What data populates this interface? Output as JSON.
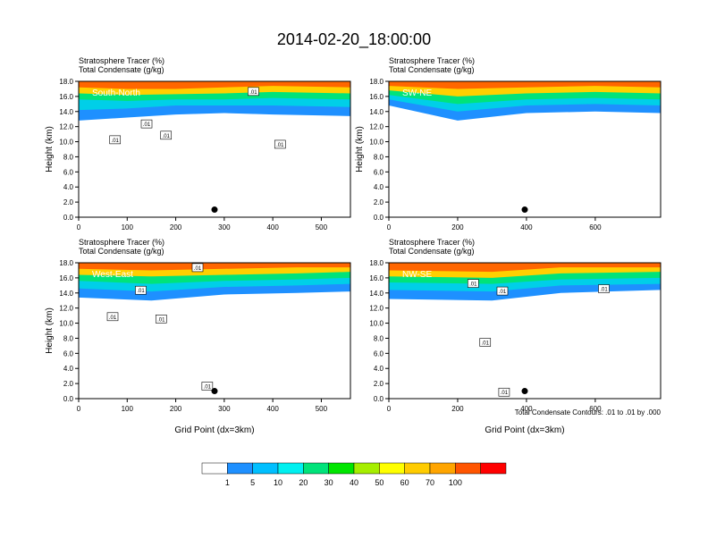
{
  "figure": {
    "title": "2014-02-20_18:00:00",
    "footnote": "Total Condensate Contours: .01 to .01 by .000"
  },
  "chart_data": [
    {
      "type": "heatmap",
      "panel_label": "South-North",
      "header_lines": [
        "Stratosphere Tracer   (%)",
        "Total Condensate   (g/kg)"
      ],
      "ylabel": "Height (km)",
      "xlabel": "",
      "xlim": [
        0,
        560
      ],
      "ylim": [
        0,
        18
      ],
      "x_ticks": [
        0,
        100,
        200,
        300,
        400,
        500
      ],
      "y_ticks": [
        "0.0",
        "2.0",
        "4.0",
        "6.0",
        "8.0",
        "10.0",
        "12.0",
        "14.0",
        "16.0",
        "18.0"
      ],
      "marker": {
        "x": 280,
        "y": 1.0
      },
      "contour_labels": [
        {
          "text": ".01",
          "x": 75,
          "y": 10.2
        },
        {
          "text": ".01",
          "x": 140,
          "y": 12.3
        },
        {
          "text": ".01",
          "x": 180,
          "y": 10.8
        },
        {
          "text": ".01",
          "x": 415,
          "y": 9.6
        },
        {
          "text": ".01",
          "x": 360,
          "y": 16.6
        }
      ],
      "tracer_top_levels": [
        {
          "x": 0,
          "z": [
            12.8,
            14.2,
            15.6,
            16.4,
            17.2
          ]
        },
        {
          "x": 100,
          "z": [
            13.2,
            14.4,
            15.4,
            16.2,
            17.0
          ]
        },
        {
          "x": 200,
          "z": [
            13.6,
            14.8,
            15.6,
            16.3,
            17.0
          ]
        },
        {
          "x": 300,
          "z": [
            13.8,
            14.8,
            15.6,
            16.4,
            17.2
          ]
        },
        {
          "x": 400,
          "z": [
            13.6,
            14.8,
            15.8,
            16.6,
            17.4
          ]
        },
        {
          "x": 560,
          "z": [
            13.4,
            14.6,
            15.6,
            16.4,
            17.2
          ]
        }
      ]
    },
    {
      "type": "heatmap",
      "panel_label": "SW-NE",
      "header_lines": [
        "Stratosphere Tracer   (%)",
        "Total Condensate   (g/kg)"
      ],
      "ylabel": "Height (km)",
      "xlabel": "",
      "xlim": [
        0,
        790
      ],
      "ylim": [
        0,
        18
      ],
      "x_ticks": [
        0,
        200,
        400,
        600
      ],
      "y_ticks": [
        "0.0",
        "2.0",
        "4.0",
        "6.0",
        "8.0",
        "10.0",
        "12.0",
        "14.0",
        "16.0",
        "18.0"
      ],
      "marker": {
        "x": 395,
        "y": 1.0
      },
      "contour_labels": [],
      "tracer_top_levels": [
        {
          "x": 0,
          "z": [
            14.8,
            15.6,
            16.2,
            16.8,
            17.4
          ]
        },
        {
          "x": 200,
          "z": [
            12.8,
            14.0,
            15.0,
            16.0,
            17.0
          ]
        },
        {
          "x": 400,
          "z": [
            13.8,
            14.8,
            15.6,
            16.4,
            17.2
          ]
        },
        {
          "x": 600,
          "z": [
            14.0,
            15.0,
            15.8,
            16.6,
            17.4
          ]
        },
        {
          "x": 790,
          "z": [
            13.8,
            14.8,
            15.6,
            16.4,
            17.2
          ]
        }
      ]
    },
    {
      "type": "heatmap",
      "panel_label": "West-East",
      "header_lines": [
        "Stratosphere Tracer   (%)",
        "Total Condensate   (g/kg)"
      ],
      "ylabel": "Height (km)",
      "xlabel": "Grid Point (dx=3km)",
      "xlim": [
        0,
        560
      ],
      "ylim": [
        0,
        18
      ],
      "x_ticks": [
        0,
        100,
        200,
        300,
        400,
        500
      ],
      "y_ticks": [
        "0.0",
        "2.0",
        "4.0",
        "6.0",
        "8.0",
        "10.0",
        "12.0",
        "14.0",
        "16.0",
        "18.0"
      ],
      "marker": {
        "x": 280,
        "y": 1.0
      },
      "contour_labels": [
        {
          "text": ".01",
          "x": 128,
          "y": 14.3
        },
        {
          "text": ".01",
          "x": 70,
          "y": 10.8
        },
        {
          "text": ".01",
          "x": 170,
          "y": 10.5
        },
        {
          "text": ".01",
          "x": 245,
          "y": 17.3
        },
        {
          "text": ".01",
          "x": 265,
          "y": 1.6
        }
      ],
      "tracer_top_levels": [
        {
          "x": 0,
          "z": [
            13.4,
            14.6,
            15.6,
            16.4,
            17.2
          ]
        },
        {
          "x": 150,
          "z": [
            13.0,
            14.2,
            15.2,
            16.2,
            17.0
          ]
        },
        {
          "x": 300,
          "z": [
            13.8,
            14.8,
            15.6,
            16.4,
            17.2
          ]
        },
        {
          "x": 450,
          "z": [
            14.0,
            15.0,
            15.8,
            16.6,
            17.4
          ]
        },
        {
          "x": 560,
          "z": [
            14.2,
            15.2,
            16.0,
            16.8,
            17.4
          ]
        }
      ]
    },
    {
      "type": "heatmap",
      "panel_label": "NW-SE",
      "header_lines": [
        "Stratosphere Tracer   (%)",
        "Total Condensate   (g/kg)"
      ],
      "ylabel": "",
      "xlabel": "Grid Point (dx=3km)",
      "xlim": [
        0,
        790
      ],
      "ylim": [
        0,
        18
      ],
      "x_ticks": [
        0,
        200,
        400,
        600
      ],
      "y_ticks": [
        "0.0",
        "2.0",
        "4.0",
        "6.0",
        "8.0",
        "10.0",
        "12.0",
        "14.0",
        "16.0",
        "18.0"
      ],
      "marker": {
        "x": 395,
        "y": 1.0
      },
      "contour_labels": [
        {
          "text": ".01",
          "x": 245,
          "y": 15.2
        },
        {
          "text": ".01",
          "x": 330,
          "y": 14.2
        },
        {
          "text": ".01",
          "x": 280,
          "y": 7.4
        },
        {
          "text": ".01",
          "x": 625,
          "y": 14.5
        },
        {
          "text": ".01",
          "x": 335,
          "y": 0.8
        }
      ],
      "tracer_top_levels": [
        {
          "x": 0,
          "z": [
            13.2,
            14.4,
            15.4,
            16.2,
            17.0
          ]
        },
        {
          "x": 300,
          "z": [
            13.0,
            14.2,
            15.2,
            16.0,
            16.8
          ]
        },
        {
          "x": 500,
          "z": [
            14.0,
            15.0,
            15.8,
            16.6,
            17.4
          ]
        },
        {
          "x": 790,
          "z": [
            14.4,
            15.2,
            16.0,
            16.8,
            17.4
          ]
        }
      ]
    }
  ],
  "colorbar": {
    "labels": [
      "1",
      "5",
      "10",
      "20",
      "30",
      "40",
      "50",
      "60",
      "70",
      "100"
    ],
    "colors": [
      "#ffffff",
      "#1e90ff",
      "#00bfff",
      "#00f0f0",
      "#00e37a",
      "#00e600",
      "#a6ee00",
      "#ffff00",
      "#ffcc00",
      "#ffa500",
      "#ff5500",
      "#ff0000"
    ]
  }
}
